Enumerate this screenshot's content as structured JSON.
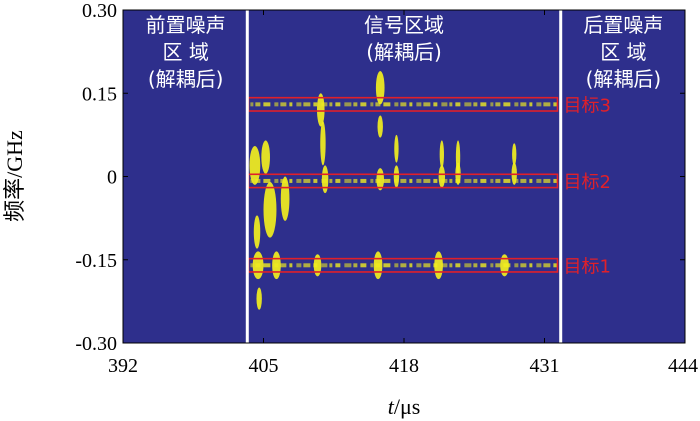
{
  "chart_data": {
    "type": "heatmap",
    "title": "",
    "xlabel": {
      "var": "t",
      "sep": "/",
      "unit": "μs"
    },
    "ylabel": "频率/GHz",
    "xlim": [
      392,
      444
    ],
    "ylim": [
      -0.3,
      0.3
    ],
    "x_ticks": [
      {
        "value": 392,
        "label": "392"
      },
      {
        "value": 405,
        "label": "405"
      },
      {
        "value": 418,
        "label": "418"
      },
      {
        "value": 431,
        "label": "431"
      },
      {
        "value": 444,
        "label": "444"
      }
    ],
    "y_ticks": [
      {
        "value": 0.3,
        "label": "0.30"
      },
      {
        "value": 0.15,
        "label": "0.15"
      },
      {
        "value": 0,
        "label": "0"
      },
      {
        "value": -0.15,
        "label": "-0.15"
      },
      {
        "value": -0.3,
        "label": "-0.30"
      }
    ],
    "colors": {
      "background": "#2e2f8c",
      "signal": "#f2ef1e",
      "box": "#e0202a",
      "divider": "#ffffff"
    },
    "dividers_x": [
      403.5,
      432.5
    ],
    "regions": [
      {
        "lines": [
          "前置噪声",
          "区 域",
          "(解耦后)"
        ],
        "x_center": 397.8
      },
      {
        "lines": [
          "信号区域",
          "(解耦后)"
        ],
        "x_center": 418
      },
      {
        "lines": [
          "后置噪声",
          "区 域",
          "(解耦后)"
        ],
        "x_center": 438.3
      }
    ],
    "targets": [
      {
        "label": "目标3",
        "freq": 0.13,
        "x_start": 403.6,
        "x_end": 432.2,
        "half_height": 0.012
      },
      {
        "label": "目标2",
        "freq": -0.008,
        "x_start": 403.6,
        "x_end": 432.2,
        "half_height": 0.012
      },
      {
        "label": "目标1",
        "freq": -0.16,
        "x_start": 403.6,
        "x_end": 432.2,
        "half_height": 0.012
      }
    ],
    "pulse_times": [
      404.3,
      405.8,
      407.1,
      410.3,
      414.6,
      417.0,
      420.6,
      422.9,
      427.2
    ],
    "blobs": [
      {
        "t": 404.2,
        "f": 0.02,
        "w": 1.0,
        "h": 0.035
      },
      {
        "t": 405.2,
        "f": 0.035,
        "w": 0.8,
        "h": 0.03
      },
      {
        "t": 405.6,
        "f": -0.06,
        "w": 1.2,
        "h": 0.05
      },
      {
        "t": 407.0,
        "f": -0.04,
        "w": 0.8,
        "h": 0.04
      },
      {
        "t": 410.3,
        "f": 0.12,
        "w": 0.7,
        "h": 0.03
      },
      {
        "t": 410.5,
        "f": 0.06,
        "w": 0.5,
        "h": 0.04
      },
      {
        "t": 410.7,
        "f": -0.005,
        "w": 0.6,
        "h": 0.025
      },
      {
        "t": 415.8,
        "f": 0.16,
        "w": 0.8,
        "h": 0.03
      },
      {
        "t": 415.8,
        "f": 0.09,
        "w": 0.5,
        "h": 0.02
      },
      {
        "t": 415.8,
        "f": -0.005,
        "w": 0.7,
        "h": 0.02
      },
      {
        "t": 417.3,
        "f": 0.05,
        "w": 0.4,
        "h": 0.025
      },
      {
        "t": 417.3,
        "f": 0.0,
        "w": 0.5,
        "h": 0.02
      },
      {
        "t": 421.5,
        "f": 0.04,
        "w": 0.4,
        "h": 0.025
      },
      {
        "t": 421.5,
        "f": 0.0,
        "w": 0.6,
        "h": 0.02
      },
      {
        "t": 423.0,
        "f": 0.035,
        "w": 0.4,
        "h": 0.03
      },
      {
        "t": 423.0,
        "f": 0.005,
        "w": 0.5,
        "h": 0.02
      },
      {
        "t": 428.2,
        "f": 0.04,
        "w": 0.4,
        "h": 0.02
      },
      {
        "t": 428.2,
        "f": 0.005,
        "w": 0.5,
        "h": 0.02
      },
      {
        "t": 404.5,
        "f": -0.16,
        "w": 1.0,
        "h": 0.025
      },
      {
        "t": 406.2,
        "f": -0.16,
        "w": 0.8,
        "h": 0.025
      },
      {
        "t": 410.0,
        "f": -0.16,
        "w": 0.7,
        "h": 0.02
      },
      {
        "t": 415.6,
        "f": -0.16,
        "w": 0.8,
        "h": 0.025
      },
      {
        "t": 421.2,
        "f": -0.16,
        "w": 0.8,
        "h": 0.025
      },
      {
        "t": 427.3,
        "f": -0.16,
        "w": 0.8,
        "h": 0.02
      },
      {
        "t": 404.4,
        "f": -0.1,
        "w": 0.6,
        "h": 0.03
      },
      {
        "t": 404.6,
        "f": -0.22,
        "w": 0.5,
        "h": 0.02
      }
    ]
  }
}
